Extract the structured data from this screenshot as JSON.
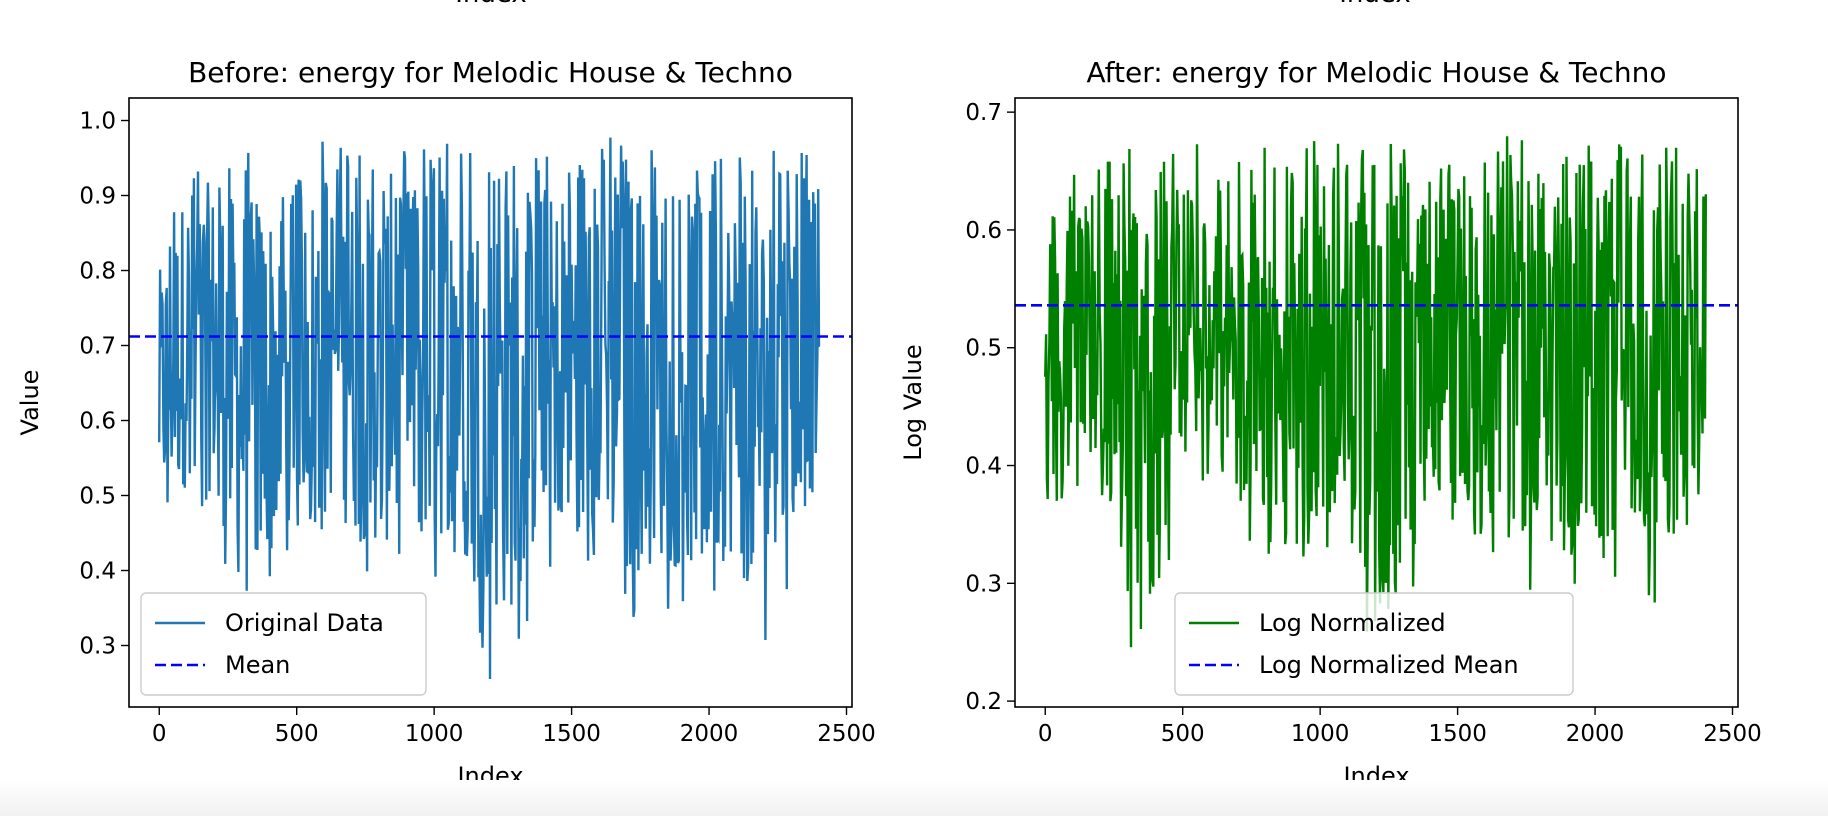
{
  "top_cutoff_labels": [
    "Index",
    "Index"
  ],
  "chart_data": [
    {
      "type": "line",
      "title": "Before: energy for Melodic House & Techno",
      "xlabel": "Index",
      "ylabel": "Value",
      "xlim": [
        -110,
        2520
      ],
      "ylim": [
        0.218,
        1.03
      ],
      "x_ticks": [
        0,
        500,
        1000,
        1500,
        2000,
        2500
      ],
      "x_tick_labels": [
        "0",
        "500",
        "1000",
        "1500",
        "2000",
        "2500"
      ],
      "y_ticks": [
        0.3,
        0.4,
        0.5,
        0.6,
        0.7,
        0.8,
        0.9,
        1.0
      ],
      "y_tick_labels": [
        "0.3",
        "0.4",
        "0.5",
        "0.6",
        "0.7",
        "0.8",
        "0.9",
        "1.0"
      ],
      "grid": false,
      "legend_position": "lower-left",
      "series": [
        {
          "name": "Original Data",
          "style": "solid",
          "color": "#1f77b4",
          "x_range": [
            0,
            2405
          ],
          "band_min_profile": [
            [
              0,
              0.43
            ],
            [
              100,
              0.46
            ],
            [
              200,
              0.45
            ],
            [
              300,
              0.3
            ],
            [
              400,
              0.34
            ],
            [
              500,
              0.44
            ],
            [
              600,
              0.45
            ],
            [
              700,
              0.39
            ],
            [
              800,
              0.37
            ],
            [
              900,
              0.38
            ],
            [
              1000,
              0.37
            ],
            [
              1100,
              0.4
            ],
            [
              1200,
              0.25
            ],
            [
              1300,
              0.28
            ],
            [
              1400,
              0.4
            ],
            [
              1500,
              0.4
            ],
            [
              1600,
              0.4
            ],
            [
              1700,
              0.32
            ],
            [
              1800,
              0.35
            ],
            [
              1900,
              0.33
            ],
            [
              2000,
              0.34
            ],
            [
              2100,
              0.36
            ],
            [
              2200,
              0.3
            ],
            [
              2300,
              0.39
            ],
            [
              2405,
              0.47
            ]
          ],
          "band_max_profile": [
            [
              0,
              0.84
            ],
            [
              100,
              0.97
            ],
            [
              200,
              0.97
            ],
            [
              300,
              0.96
            ],
            [
              400,
              0.96
            ],
            [
              500,
              0.95
            ],
            [
              600,
              0.98
            ],
            [
              700,
              0.97
            ],
            [
              800,
              0.96
            ],
            [
              900,
              0.96
            ],
            [
              1000,
              0.97
            ],
            [
              1100,
              0.97
            ],
            [
              1200,
              0.96
            ],
            [
              1300,
              0.97
            ],
            [
              1400,
              0.96
            ],
            [
              1500,
              0.96
            ],
            [
              1600,
              0.99
            ],
            [
              1700,
              0.97
            ],
            [
              1800,
              0.96
            ],
            [
              1900,
              0.98
            ],
            [
              2000,
              0.96
            ],
            [
              2100,
              0.97
            ],
            [
              2200,
              0.96
            ],
            [
              2300,
              0.96
            ],
            [
              2405,
              0.96
            ]
          ],
          "y_range": [
            0.245,
            0.99
          ]
        },
        {
          "name": "Mean",
          "style": "dashed",
          "color": "#0000ff",
          "y": 0.712
        }
      ]
    },
    {
      "type": "line",
      "title": "After: energy for Melodic House & Techno",
      "xlabel": "Index",
      "ylabel": "Log Value",
      "xlim": [
        -110,
        2520
      ],
      "ylim": [
        0.195,
        0.712
      ],
      "x_ticks": [
        0,
        500,
        1000,
        1500,
        2000,
        2500
      ],
      "x_tick_labels": [
        "0",
        "500",
        "1000",
        "1500",
        "2000",
        "2500"
      ],
      "y_ticks": [
        0.2,
        0.3,
        0.4,
        0.5,
        0.6,
        0.7
      ],
      "y_tick_labels": [
        "0.2",
        "0.3",
        "0.4",
        "0.5",
        "0.6",
        "0.7"
      ],
      "grid": false,
      "legend_position": "lower-center",
      "series": [
        {
          "name": "Log Normalized",
          "style": "solid",
          "color": "#008000",
          "x_range": [
            0,
            2405
          ],
          "band_min_profile": [
            [
              0,
              0.36
            ],
            [
              100,
              0.38
            ],
            [
              200,
              0.37
            ],
            [
              300,
              0.23
            ],
            [
              400,
              0.26
            ],
            [
              500,
              0.37
            ],
            [
              600,
              0.37
            ],
            [
              700,
              0.33
            ],
            [
              800,
              0.32
            ],
            [
              900,
              0.32
            ],
            [
              1000,
              0.32
            ],
            [
              1100,
              0.34
            ],
            [
              1200,
              0.22
            ],
            [
              1300,
              0.25
            ],
            [
              1400,
              0.34
            ],
            [
              1500,
              0.34
            ],
            [
              1600,
              0.34
            ],
            [
              1700,
              0.28
            ],
            [
              1800,
              0.3
            ],
            [
              1900,
              0.29
            ],
            [
              2000,
              0.29
            ],
            [
              2100,
              0.31
            ],
            [
              2200,
              0.26
            ],
            [
              2300,
              0.33
            ],
            [
              2405,
              0.38
            ]
          ],
          "band_max_profile": [
            [
              0,
              0.6
            ],
            [
              100,
              0.68
            ],
            [
              200,
              0.68
            ],
            [
              300,
              0.67
            ],
            [
              400,
              0.67
            ],
            [
              500,
              0.67
            ],
            [
              600,
              0.68
            ],
            [
              700,
              0.68
            ],
            [
              800,
              0.67
            ],
            [
              900,
              0.67
            ],
            [
              1000,
              0.68
            ],
            [
              1100,
              0.68
            ],
            [
              1200,
              0.67
            ],
            [
              1300,
              0.68
            ],
            [
              1400,
              0.67
            ],
            [
              1500,
              0.67
            ],
            [
              1600,
              0.69
            ],
            [
              1700,
              0.68
            ],
            [
              1800,
              0.67
            ],
            [
              1900,
              0.68
            ],
            [
              2000,
              0.67
            ],
            [
              2100,
              0.68
            ],
            [
              2200,
              0.67
            ],
            [
              2300,
              0.67
            ],
            [
              2405,
              0.67
            ]
          ],
          "y_range": [
            0.23,
            0.69
          ]
        },
        {
          "name": "Log Normalized Mean",
          "style": "dashed",
          "color": "#0000ff",
          "y": 0.536
        }
      ]
    }
  ]
}
